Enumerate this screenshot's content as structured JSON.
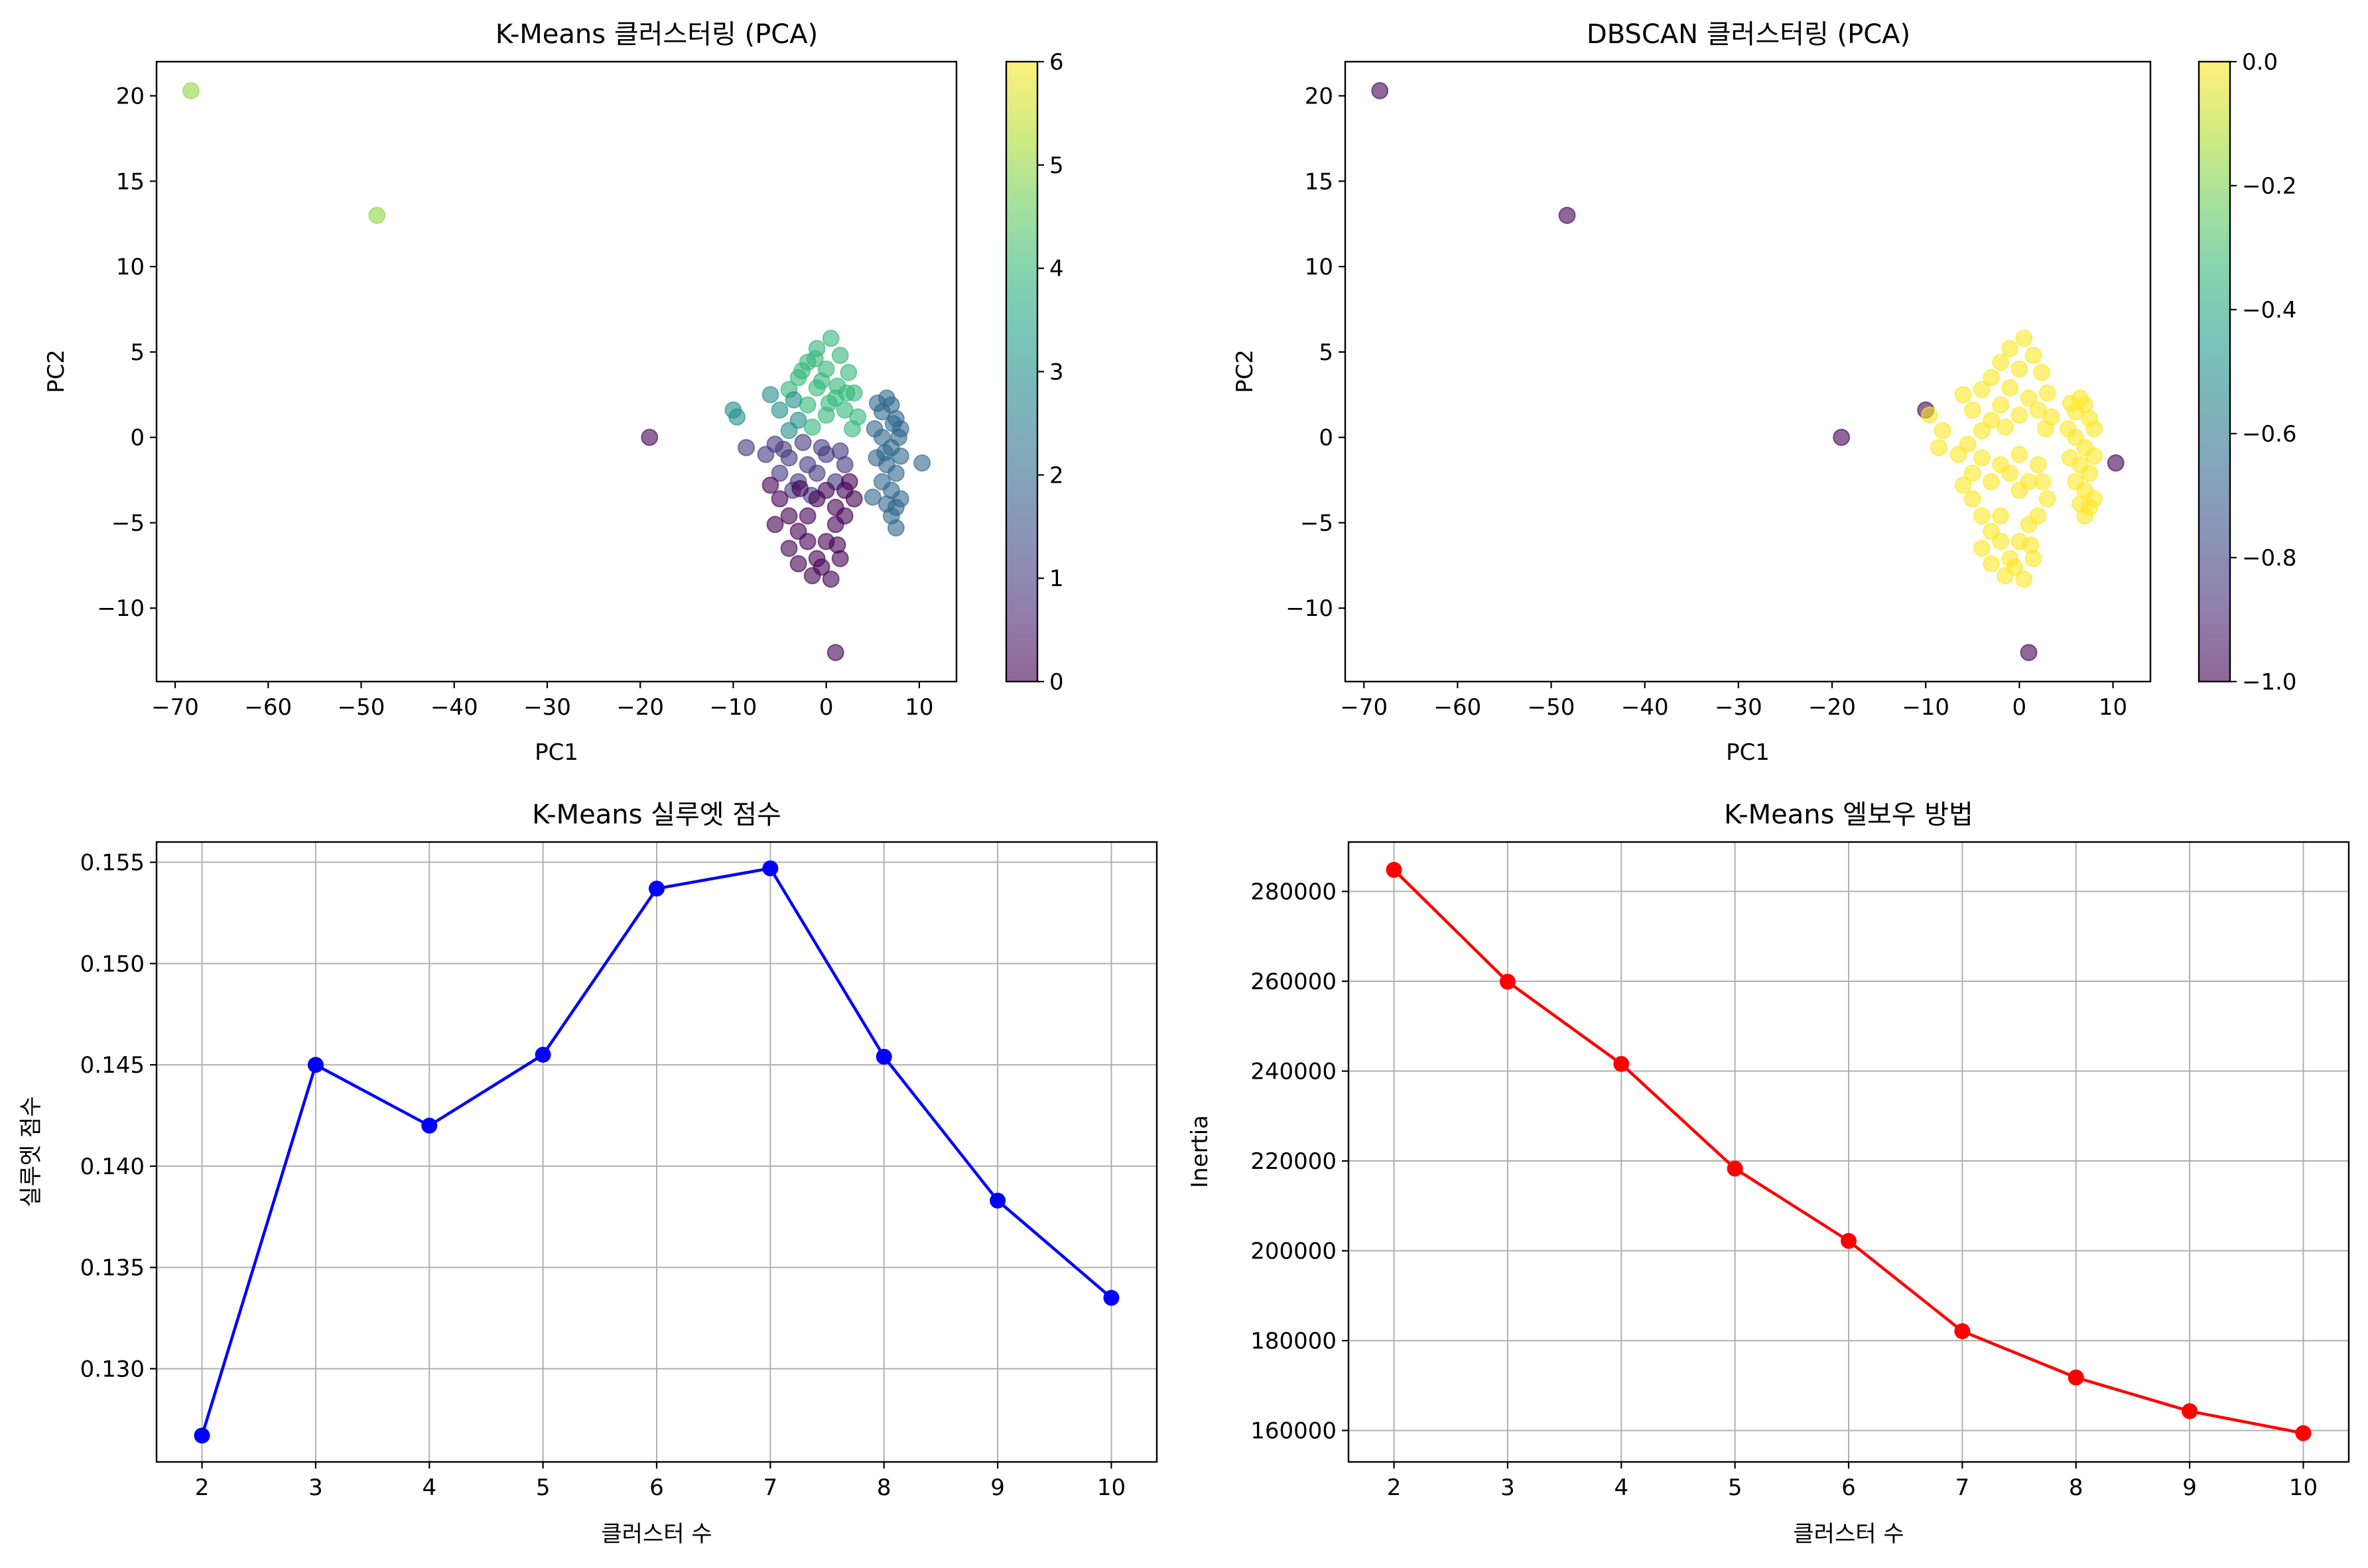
{
  "colors": {
    "viridis": [
      "#440154",
      "#482878",
      "#3e4989",
      "#31688e",
      "#26828e",
      "#1f9e89",
      "#35b779",
      "#6ece58",
      "#b5de2b",
      "#fde725"
    ],
    "line_blue": "#0000ff",
    "line_red": "#ff0000",
    "grid": "#b0b0b0"
  },
  "chart_data": [
    {
      "type": "scatter",
      "title": "K-Means 클러스터링 (PCA)",
      "xlabel": "PC1",
      "ylabel": "PC2",
      "xlim": [
        -72,
        14
      ],
      "ylim": [
        -14.3,
        22
      ],
      "xticks": [
        -70,
        -60,
        -50,
        -40,
        -30,
        -20,
        -10,
        0,
        10
      ],
      "yticks": [
        -10,
        -5,
        0,
        5,
        10,
        15,
        20
      ],
      "grid": false,
      "point_alpha": 0.6,
      "colorbar": {
        "min": 0,
        "max": 6,
        "ticks": [
          0,
          1,
          2,
          3,
          4,
          5,
          6
        ]
      },
      "points": [
        [
          -68.3,
          20.3,
          5
        ],
        [
          -48.3,
          13.0,
          5
        ],
        [
          -19.0,
          0.0,
          0
        ],
        [
          1.0,
          -12.6,
          0
        ],
        [
          10.3,
          -1.5,
          2
        ],
        [
          -10.0,
          1.6,
          3
        ],
        [
          -9.6,
          1.2,
          3
        ],
        [
          -8.6,
          -0.6,
          1
        ],
        [
          -6,
          2.5,
          3
        ],
        [
          -5,
          1.6,
          3
        ],
        [
          -4,
          2.8,
          4
        ],
        [
          -3,
          3.5,
          4
        ],
        [
          -2,
          4.4,
          4
        ],
        [
          -1,
          5.2,
          4
        ],
        [
          0,
          4.0,
          4
        ],
        [
          0.5,
          5.8,
          4
        ],
        [
          1.5,
          4.8,
          4
        ],
        [
          2.4,
          3.8,
          4
        ],
        [
          3,
          2.6,
          4
        ],
        [
          2,
          1.6,
          4
        ],
        [
          1,
          2.3,
          4
        ],
        [
          0,
          1.3,
          4
        ],
        [
          -1,
          2.9,
          4
        ],
        [
          -2,
          1.9,
          4
        ],
        [
          -3,
          1.0,
          3
        ],
        [
          -4,
          0.4,
          3
        ],
        [
          -1.5,
          0.6,
          4
        ],
        [
          2.8,
          0.5,
          4
        ],
        [
          3.4,
          1.2,
          4
        ],
        [
          -0.5,
          3.3,
          4
        ],
        [
          1.2,
          3.0,
          4
        ],
        [
          -2.6,
          3.9,
          4
        ],
        [
          0.3,
          2.0,
          4
        ],
        [
          2.2,
          2.6,
          4
        ],
        [
          -3.5,
          2.2,
          3
        ],
        [
          -1.2,
          4.6,
          4
        ],
        [
          -6.5,
          -1.0,
          1
        ],
        [
          -5.5,
          -0.4,
          1
        ],
        [
          -5,
          -2.1,
          1
        ],
        [
          -4,
          -1.2,
          1
        ],
        [
          -3,
          -2.6,
          1
        ],
        [
          -2,
          -1.6,
          1
        ],
        [
          -1,
          -2.1,
          1
        ],
        [
          0,
          -1.0,
          1
        ],
        [
          1,
          -2.6,
          1
        ],
        [
          2,
          -1.6,
          1
        ],
        [
          -3.6,
          -3.1,
          1
        ],
        [
          -2.5,
          -0.3,
          1
        ],
        [
          -0.5,
          -0.6,
          1
        ],
        [
          1.5,
          -0.8,
          1
        ],
        [
          -4.6,
          -0.7,
          1
        ],
        [
          -1.6,
          -3.4,
          1
        ],
        [
          -6,
          -2.8,
          0
        ],
        [
          -5,
          -3.6,
          0
        ],
        [
          -4,
          -4.6,
          0
        ],
        [
          -3,
          -5.5,
          0
        ],
        [
          -2,
          -6.1,
          0
        ],
        [
          -1,
          -7.1,
          0
        ],
        [
          0,
          -6.1,
          0
        ],
        [
          1,
          -5.1,
          0
        ],
        [
          2,
          -4.6,
          0
        ],
        [
          3,
          -3.6,
          0
        ],
        [
          2.5,
          -2.6,
          0
        ],
        [
          -4,
          -6.5,
          0
        ],
        [
          -3,
          -7.4,
          0
        ],
        [
          -0.5,
          -7.6,
          0
        ],
        [
          0.5,
          -8.3,
          0
        ],
        [
          1.5,
          -7.1,
          0
        ],
        [
          -2,
          -4.6,
          0
        ],
        [
          -1,
          -3.6,
          0
        ],
        [
          0,
          -3.1,
          0
        ],
        [
          1,
          -4.1,
          0
        ],
        [
          2,
          -3.1,
          0
        ],
        [
          -5.5,
          -5.1,
          0
        ],
        [
          -1.5,
          -8.1,
          0
        ],
        [
          1.2,
          -6.3,
          0
        ],
        [
          -2.8,
          -3.0,
          0
        ],
        [
          5.5,
          2.0,
          2
        ],
        [
          6,
          1.5,
          2
        ],
        [
          6.5,
          2.3,
          2
        ],
        [
          7,
          1.9,
          2
        ],
        [
          7.5,
          1.1,
          2
        ],
        [
          8,
          0.5,
          2
        ],
        [
          6,
          0.0,
          2
        ],
        [
          7,
          -0.6,
          2
        ],
        [
          8,
          -1.1,
          2
        ],
        [
          6.5,
          -1.6,
          2
        ],
        [
          7.5,
          -2.1,
          2
        ],
        [
          6,
          -2.6,
          2
        ],
        [
          7,
          -3.1,
          2
        ],
        [
          8,
          -3.6,
          2
        ],
        [
          6.5,
          -3.9,
          2
        ],
        [
          7.5,
          -4.1,
          2
        ],
        [
          7,
          -4.6,
          2
        ],
        [
          7.5,
          -5.3,
          2
        ],
        [
          5,
          -3.5,
          2
        ],
        [
          5.2,
          0.5,
          2
        ],
        [
          5.4,
          -1.2,
          2
        ],
        [
          7.8,
          0.0,
          2
        ],
        [
          6.3,
          -0.9,
          2
        ],
        [
          7.2,
          0.8,
          2
        ]
      ]
    },
    {
      "type": "scatter",
      "title": "DBSCAN 클러스터링 (PCA)",
      "xlabel": "PC1",
      "ylabel": "PC2",
      "xlim": [
        -72,
        14
      ],
      "ylim": [
        -14.3,
        22
      ],
      "xticks": [
        -70,
        -60,
        -50,
        -40,
        -30,
        -20,
        -10,
        0,
        10
      ],
      "yticks": [
        -10,
        -5,
        0,
        5,
        10,
        15,
        20
      ],
      "grid": false,
      "point_alpha": 0.6,
      "colorbar": {
        "min": -1.0,
        "max": 0.0,
        "ticks": [
          -1.0,
          -0.8,
          -0.6,
          -0.4,
          -0.2,
          0.0
        ]
      },
      "points": [
        [
          -68.3,
          20.3,
          -1
        ],
        [
          -48.3,
          13.0,
          -1
        ],
        [
          -19.0,
          0.0,
          -1
        ],
        [
          -10.0,
          1.6,
          -1
        ],
        [
          1.0,
          -12.6,
          -1
        ],
        [
          10.3,
          -1.5,
          -1
        ],
        [
          -9.6,
          1.3,
          0
        ],
        [
          -8.6,
          -0.6,
          0
        ],
        [
          -8.2,
          0.4,
          0
        ],
        [
          -6,
          2.5,
          0
        ],
        [
          -5,
          1.6,
          0
        ],
        [
          -4,
          2.8,
          0
        ],
        [
          -3,
          3.5,
          0
        ],
        [
          -2,
          4.4,
          0
        ],
        [
          -1,
          5.2,
          0
        ],
        [
          0,
          4.0,
          0
        ],
        [
          0.5,
          5.8,
          0
        ],
        [
          1.5,
          4.8,
          0
        ],
        [
          2.4,
          3.8,
          0
        ],
        [
          3,
          2.6,
          0
        ],
        [
          2,
          1.6,
          0
        ],
        [
          1,
          2.3,
          0
        ],
        [
          0,
          1.3,
          0
        ],
        [
          -1,
          2.9,
          0
        ],
        [
          -2,
          1.9,
          0
        ],
        [
          -3,
          1.0,
          0
        ],
        [
          -4,
          0.4,
          0
        ],
        [
          -1.5,
          0.6,
          0
        ],
        [
          2.8,
          0.5,
          0
        ],
        [
          3.4,
          1.2,
          0
        ],
        [
          -6.5,
          -1.0,
          0
        ],
        [
          -5.5,
          -0.4,
          0
        ],
        [
          -5,
          -2.1,
          0
        ],
        [
          -4,
          -1.2,
          0
        ],
        [
          -3,
          -2.6,
          0
        ],
        [
          -2,
          -1.6,
          0
        ],
        [
          -1,
          -2.1,
          0
        ],
        [
          0,
          -1.0,
          0
        ],
        [
          1,
          -2.6,
          0
        ],
        [
          2,
          -1.6,
          0
        ],
        [
          -6,
          -2.8,
          0
        ],
        [
          -5,
          -3.6,
          0
        ],
        [
          -4,
          -4.6,
          0
        ],
        [
          -3,
          -5.5,
          0
        ],
        [
          -2,
          -6.1,
          0
        ],
        [
          -1,
          -7.1,
          0
        ],
        [
          0,
          -6.1,
          0
        ],
        [
          1,
          -5.1,
          0
        ],
        [
          2,
          -4.6,
          0
        ],
        [
          3,
          -3.6,
          0
        ],
        [
          2.5,
          -2.6,
          0
        ],
        [
          -4,
          -6.5,
          0
        ],
        [
          -3,
          -7.4,
          0
        ],
        [
          -0.5,
          -7.6,
          0
        ],
        [
          0.5,
          -8.3,
          0
        ],
        [
          1.5,
          -7.1,
          0
        ],
        [
          -2,
          -4.6,
          0
        ],
        [
          0,
          -3.1,
          0
        ],
        [
          -1.5,
          -8.1,
          0
        ],
        [
          1.2,
          -6.3,
          0
        ],
        [
          5.5,
          2.0,
          0
        ],
        [
          6,
          1.5,
          0
        ],
        [
          6.5,
          2.3,
          0
        ],
        [
          7,
          1.9,
          0
        ],
        [
          7.5,
          1.1,
          0
        ],
        [
          8,
          0.5,
          0
        ],
        [
          6,
          0.0,
          0
        ],
        [
          7,
          -0.6,
          0
        ],
        [
          8,
          -1.1,
          0
        ],
        [
          6.5,
          -1.6,
          0
        ],
        [
          7.5,
          -2.1,
          0
        ],
        [
          6,
          -2.6,
          0
        ],
        [
          7,
          -3.1,
          0
        ],
        [
          8,
          -3.6,
          0
        ],
        [
          6.5,
          -3.9,
          0
        ],
        [
          7.5,
          -4.1,
          0
        ],
        [
          7,
          -4.6,
          0
        ],
        [
          5.2,
          0.5,
          0
        ],
        [
          5.4,
          -1.2,
          0
        ]
      ]
    },
    {
      "type": "line",
      "title": "K-Means 실루엣 점수",
      "xlabel": "클러스터 수",
      "ylabel": "실루엣 점수",
      "xlim": [
        1.6,
        10.4
      ],
      "ylim": [
        0.1254,
        0.156
      ],
      "xticks": [
        2,
        3,
        4,
        5,
        6,
        7,
        8,
        9,
        10
      ],
      "yticks": [
        0.13,
        0.135,
        0.14,
        0.145,
        0.15,
        0.155
      ],
      "ytick_decimals": 3,
      "grid": true,
      "color": "#0000ff",
      "x": [
        2,
        3,
        4,
        5,
        6,
        7,
        8,
        9,
        10
      ],
      "y": [
        0.1267,
        0.145,
        0.142,
        0.1455,
        0.1537,
        0.1547,
        0.1454,
        0.1383,
        0.1335
      ]
    },
    {
      "type": "line",
      "title": "K-Means 엘보우 방법",
      "xlabel": "클러스터 수",
      "ylabel": "Inertia",
      "xlim": [
        1.6,
        10.4
      ],
      "ylim": [
        153000,
        291000
      ],
      "xticks": [
        2,
        3,
        4,
        5,
        6,
        7,
        8,
        9,
        10
      ],
      "yticks": [
        160000,
        180000,
        200000,
        220000,
        240000,
        260000,
        280000
      ],
      "ytick_decimals": 0,
      "grid": true,
      "color": "#ff0000",
      "x": [
        2,
        3,
        4,
        5,
        6,
        7,
        8,
        9,
        10
      ],
      "y": [
        284800,
        259900,
        241600,
        218300,
        202200,
        182100,
        171800,
        164300,
        159400
      ]
    }
  ]
}
